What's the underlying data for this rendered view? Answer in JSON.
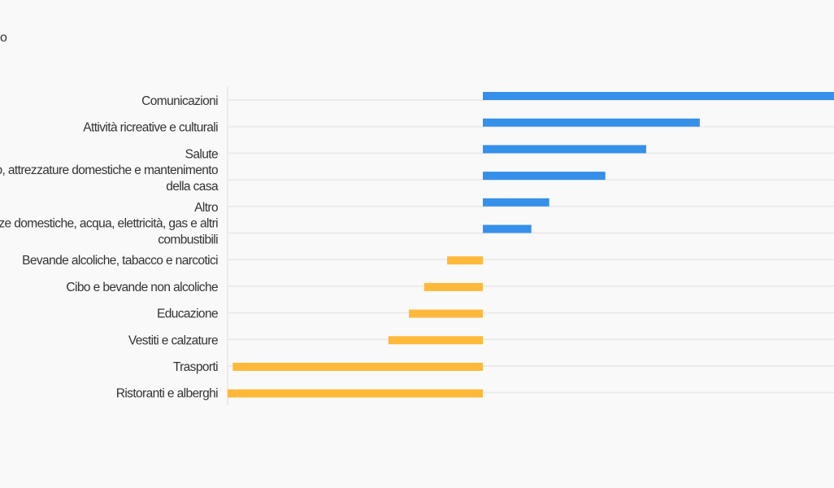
{
  "title": "o",
  "chart_data": {
    "type": "bar",
    "orientation": "horizontal",
    "title": "o",
    "xlabel": "",
    "ylabel": "",
    "grid": true,
    "xlim": [
      -10,
      13.8
    ],
    "categories": [
      [
        "Comunicazioni"
      ],
      [
        "Attività ricreative e culturali"
      ],
      [
        "Salute"
      ],
      [
        "Arredamento, attrezzature domestiche e mantenimento",
        "della casa"
      ],
      [
        "Altro"
      ],
      [
        "Abitazione, utenze domestiche, acqua, elettricità, gas e altri",
        "combustibili"
      ],
      [
        "Bevande alcoliche, tabacco e narcotici"
      ],
      [
        "Cibo e bevande non alcoliche"
      ],
      [
        "Educazione"
      ],
      [
        "Vestiti e calzature"
      ],
      [
        "Trasporti"
      ],
      [
        "Ristoranti e alberghi"
      ]
    ],
    "values": [
      13.8,
      8.5,
      6.4,
      4.8,
      2.6,
      1.9,
      -1.4,
      -2.3,
      -2.9,
      -3.7,
      -9.8,
      -10.0
    ],
    "colors": {
      "positive": "#3590ea",
      "negative": "#ffb93a",
      "grid": "#ebebeb"
    }
  }
}
